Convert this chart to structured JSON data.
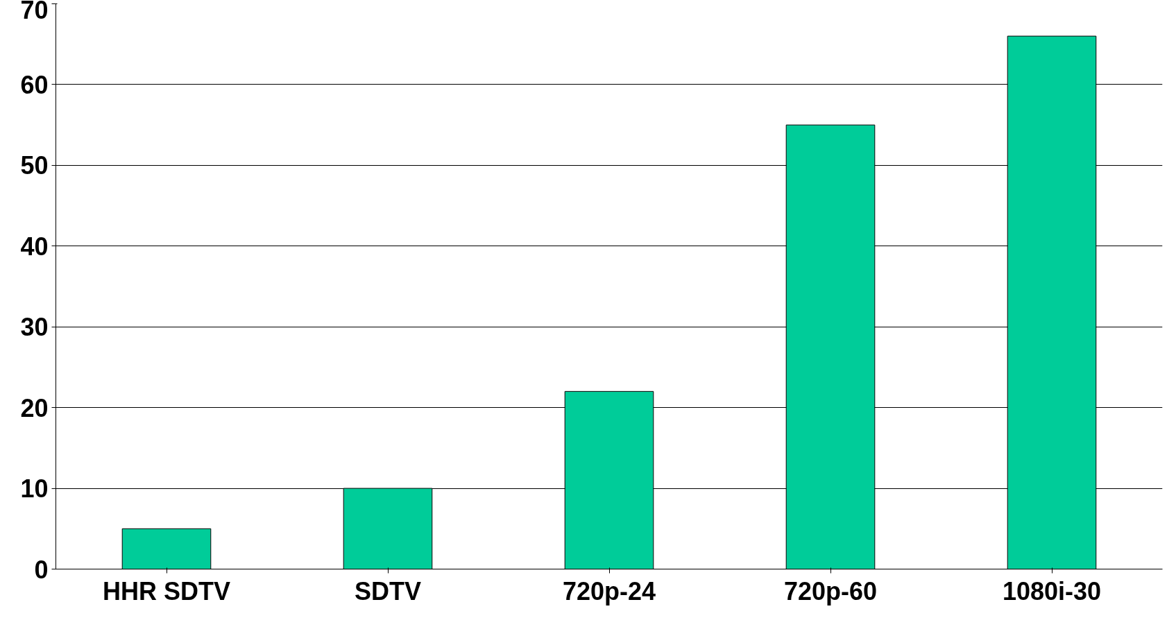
{
  "chart_data": {
    "type": "bar",
    "categories": [
      "HHR SDTV",
      "SDTV",
      "720p-24",
      "720p-60",
      "1080i-30"
    ],
    "values": [
      5,
      10,
      22,
      55,
      66
    ],
    "color": "#00cc99",
    "ylim": [
      0,
      70
    ],
    "yticks": [
      0,
      10,
      20,
      30,
      40,
      50,
      60,
      70
    ],
    "grid": "y"
  }
}
